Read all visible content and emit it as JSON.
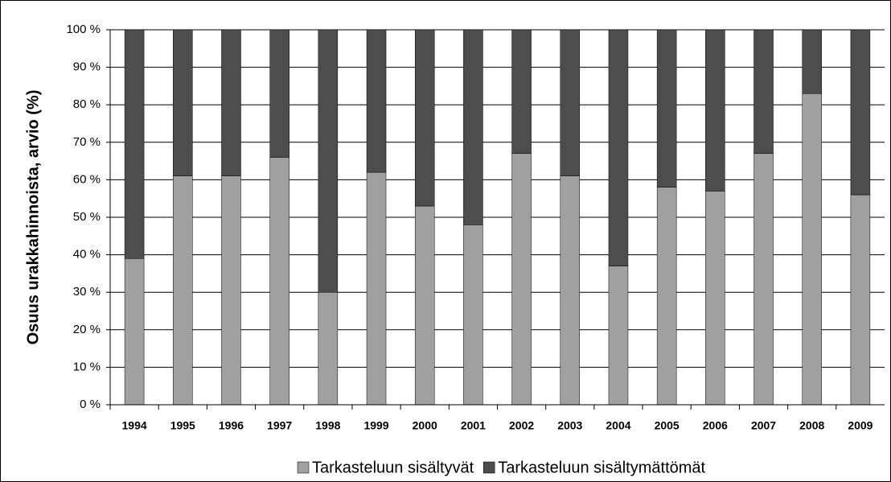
{
  "chart_data": {
    "type": "stacked_bar",
    "y_label": "Osuus urakkahinnoista, arvio (%)",
    "categories": [
      "1994",
      "1995",
      "1996",
      "1997",
      "1998",
      "1999",
      "2000",
      "2001",
      "2002",
      "2003",
      "2004",
      "2005",
      "2006",
      "2007",
      "2008",
      "2009"
    ],
    "series": [
      {
        "name": "Tarkasteluun sisältyvät",
        "color": "#a0a0a0",
        "values": [
          39,
          61,
          61,
          66,
          30,
          62,
          53,
          48,
          67,
          61,
          37,
          58,
          57,
          67,
          83,
          56
        ]
      },
      {
        "name": "Tarkasteluun sisältymättömät",
        "color": "#4d4d4d",
        "values": [
          61,
          39,
          39,
          34,
          70,
          38,
          47,
          52,
          33,
          39,
          63,
          42,
          43,
          33,
          17,
          44
        ]
      }
    ],
    "ylim": [
      0,
      100
    ],
    "yticks": [
      {
        "value": 0,
        "label": "0 %"
      },
      {
        "value": 10,
        "label": "10 %"
      },
      {
        "value": 20,
        "label": "20 %"
      },
      {
        "value": 30,
        "label": "30 %"
      },
      {
        "value": 40,
        "label": "40 %"
      },
      {
        "value": 50,
        "label": "50 %"
      },
      {
        "value": 60,
        "label": "60 %"
      },
      {
        "value": 70,
        "label": "70 %"
      },
      {
        "value": 80,
        "label": "80 %"
      },
      {
        "value": 90,
        "label": "90 %"
      },
      {
        "value": 100,
        "label": "100 %"
      }
    ],
    "grid": true,
    "legend": "bottom"
  }
}
